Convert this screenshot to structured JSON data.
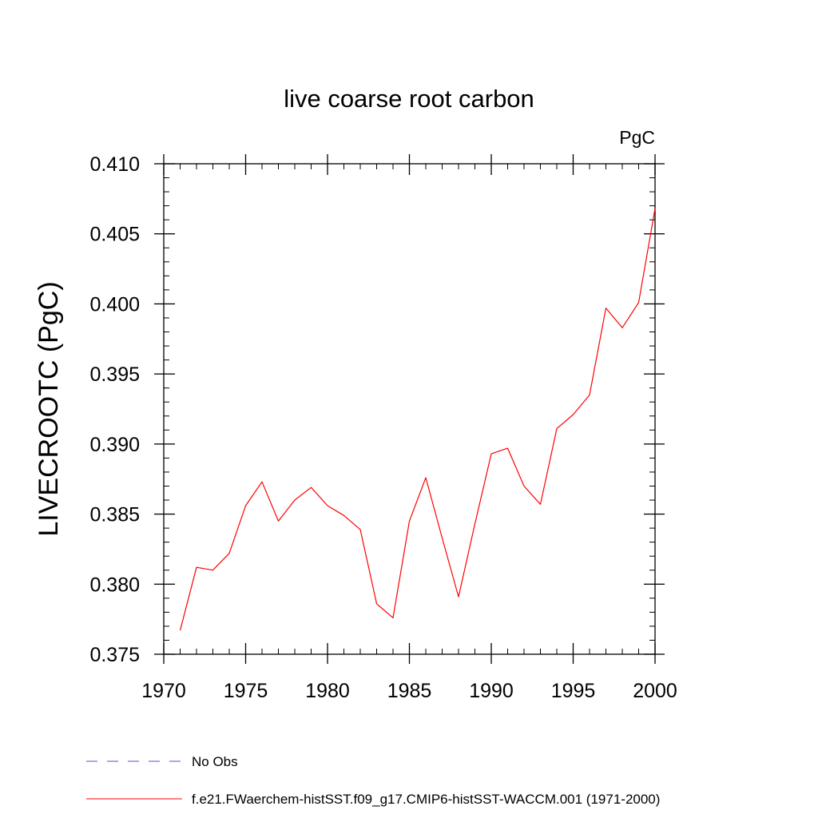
{
  "chart_data": {
    "type": "line",
    "title": "live coarse root carbon",
    "units_label": "PgC",
    "ylabel": "LIVECROOTC  (PgC)",
    "xlabel": "",
    "xlim": [
      1970,
      2000
    ],
    "ylim": [
      0.375,
      0.41
    ],
    "xticks": [
      1970,
      1975,
      1980,
      1985,
      1990,
      1995,
      2000
    ],
    "xtick_labels": [
      "1970",
      "1975",
      "1980",
      "1985",
      "1990",
      "1995",
      "2000"
    ],
    "yticks": [
      0.375,
      0.38,
      0.385,
      0.39,
      0.395,
      0.4,
      0.405,
      0.41
    ],
    "ytick_labels": [
      "0.375",
      "0.380",
      "0.385",
      "0.390",
      "0.395",
      "0.400",
      "0.405",
      "0.410"
    ],
    "grid": false,
    "legend_position": "bottom-left",
    "series": [
      {
        "name": "f.e21.FWaerchem-histSST.f09_g17.CMIP6-histSST-WACCM.001 (1971-2000)",
        "color": "#ff0000",
        "style": "solid",
        "x": [
          1971,
          1972,
          1973,
          1974,
          1975,
          1976,
          1977,
          1978,
          1979,
          1980,
          1981,
          1982,
          1983,
          1984,
          1985,
          1986,
          1987,
          1988,
          1989,
          1990,
          1991,
          1992,
          1993,
          1994,
          1995,
          1996,
          1997,
          1998,
          1999,
          2000
        ],
        "y": [
          0.3767,
          0.3812,
          0.381,
          0.3822,
          0.3856,
          0.3873,
          0.3845,
          0.386,
          0.3869,
          0.3856,
          0.3849,
          0.3839,
          0.3786,
          0.3776,
          0.3845,
          0.3876,
          0.3833,
          0.3791,
          0.3843,
          0.3893,
          0.3897,
          0.387,
          0.3857,
          0.3911,
          0.3921,
          0.3935,
          0.3997,
          0.3983,
          0.4001,
          0.4068
        ]
      }
    ],
    "legend": [
      {
        "label": "No Obs",
        "color": "#5a4fcf",
        "style": "dashed"
      },
      {
        "label": "f.e21.FWaerchem-histSST.f09_g17.CMIP6-histSST-WACCM.001 (1971-2000)",
        "color": "#ff0000",
        "style": "solid"
      }
    ]
  }
}
